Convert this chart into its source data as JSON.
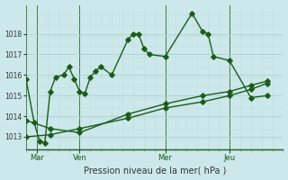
{
  "background_color": "#cce8ea",
  "grid_color_major": "#aacfcf",
  "grid_color_minor": "#c0dede",
  "line_color": "#1a5c1a",
  "xlabel": "Pression niveau de la mer( hPa )",
  "ylim": [
    1012.4,
    1019.4
  ],
  "yticks": [
    1013,
    1014,
    1015,
    1016,
    1017,
    1018
  ],
  "xlim": [
    0,
    96
  ],
  "xtick_labels": [
    "Mar",
    "Ven",
    "Mer",
    "Jeu"
  ],
  "xtick_positions": [
    4,
    20,
    52,
    76
  ],
  "vlines": [
    4,
    20,
    52,
    76
  ],
  "series1_x": [
    0,
    3,
    5,
    7,
    9,
    11,
    14,
    16,
    18,
    20,
    22,
    24,
    26,
    28,
    32,
    38,
    40,
    42,
    44,
    46,
    52,
    62,
    66,
    68,
    70,
    76,
    84,
    90
  ],
  "series1_y": [
    1015.8,
    1013.7,
    1012.8,
    1012.7,
    1015.2,
    1015.9,
    1016.0,
    1016.4,
    1015.8,
    1015.2,
    1015.1,
    1015.9,
    1016.2,
    1016.4,
    1016.0,
    1017.7,
    1018.0,
    1018.0,
    1017.3,
    1017.0,
    1016.9,
    1019.0,
    1018.1,
    1018.0,
    1016.9,
    1016.7,
    1014.9,
    1015.0
  ],
  "series2_x": [
    0,
    9,
    20,
    38,
    52,
    66,
    76,
    84,
    90
  ],
  "series2_y": [
    1013.8,
    1013.4,
    1013.2,
    1014.1,
    1014.6,
    1015.0,
    1015.2,
    1015.5,
    1015.7
  ],
  "series3_x": [
    0,
    9,
    20,
    38,
    52,
    66,
    76,
    84,
    90
  ],
  "series3_y": [
    1013.0,
    1013.1,
    1013.4,
    1013.9,
    1014.4,
    1014.7,
    1015.0,
    1015.3,
    1015.6
  ],
  "marker": "D",
  "markersize": 2.8,
  "linewidth": 1.0
}
